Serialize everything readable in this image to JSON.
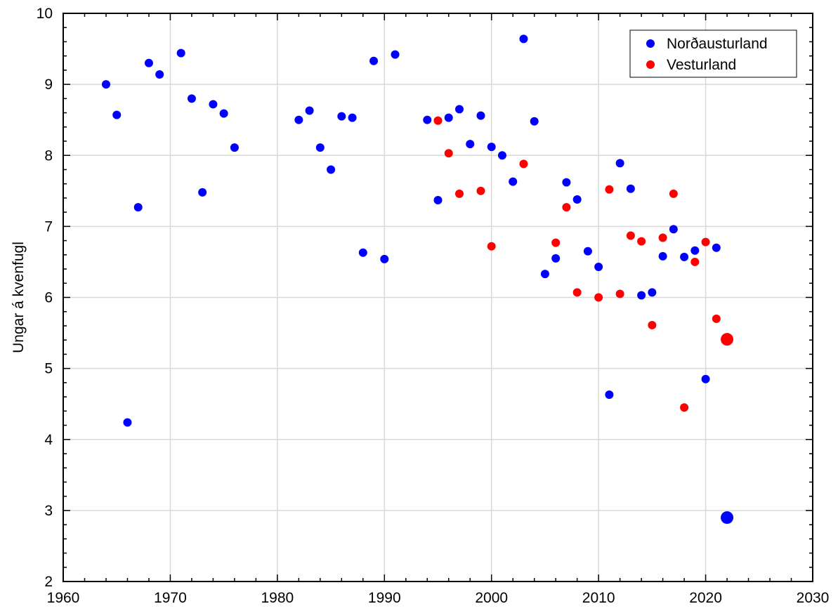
{
  "chart_data": {
    "type": "scatter",
    "title": "",
    "xlabel": "",
    "ylabel": "Ungar á kvenfugl",
    "xlim": [
      1960,
      2030
    ],
    "ylim": [
      2,
      10
    ],
    "x_ticks": [
      1960,
      1970,
      1980,
      1990,
      2000,
      2010,
      2020,
      2030
    ],
    "y_ticks": [
      2,
      3,
      4,
      5,
      6,
      7,
      8,
      9,
      10
    ],
    "grid": true,
    "legend_position": "top-right",
    "series": [
      {
        "name": "Norðausturland",
        "color": "#0000ff",
        "points": [
          [
            1964,
            9.0
          ],
          [
            1965,
            8.57
          ],
          [
            1966,
            4.24
          ],
          [
            1967,
            7.27
          ],
          [
            1968,
            9.3
          ],
          [
            1969,
            9.14
          ],
          [
            1971,
            9.44
          ],
          [
            1972,
            8.8
          ],
          [
            1973,
            7.48
          ],
          [
            1974,
            8.72
          ],
          [
            1975,
            8.59
          ],
          [
            1976,
            8.11
          ],
          [
            1982,
            8.5
          ],
          [
            1983,
            8.63
          ],
          [
            1984,
            8.11
          ],
          [
            1985,
            7.8
          ],
          [
            1986,
            8.55
          ],
          [
            1987,
            8.53
          ],
          [
            1988,
            6.63
          ],
          [
            1989,
            9.33
          ],
          [
            1990,
            6.54
          ],
          [
            1991,
            9.42
          ],
          [
            1994,
            8.5
          ],
          [
            1995,
            7.37
          ],
          [
            1996,
            8.53
          ],
          [
            1997,
            8.65
          ],
          [
            1998,
            8.16
          ],
          [
            1999,
            8.56
          ],
          [
            2000,
            8.12
          ],
          [
            2001,
            8.0
          ],
          [
            2002,
            7.63
          ],
          [
            2003,
            9.64
          ],
          [
            2004,
            8.48
          ],
          [
            2005,
            6.33
          ],
          [
            2006,
            6.55
          ],
          [
            2007,
            7.62
          ],
          [
            2008,
            7.38
          ],
          [
            2009,
            6.65
          ],
          [
            2010,
            6.43
          ],
          [
            2011,
            4.63
          ],
          [
            2012,
            7.89
          ],
          [
            2013,
            7.53
          ],
          [
            2014,
            6.03
          ],
          [
            2015,
            6.07
          ],
          [
            2016,
            6.58
          ],
          [
            2017,
            6.96
          ],
          [
            2018,
            6.57
          ],
          [
            2019,
            6.66
          ],
          [
            2020,
            4.85
          ],
          [
            2021,
            6.7
          ]
        ],
        "highlight": [
          [
            2022,
            2.9
          ]
        ]
      },
      {
        "name": "Vesturland",
        "color": "#ff0000",
        "points": [
          [
            1995,
            8.49
          ],
          [
            1996,
            8.03
          ],
          [
            1997,
            7.46
          ],
          [
            1999,
            7.5
          ],
          [
            2000,
            6.72
          ],
          [
            2003,
            7.88
          ],
          [
            2006,
            6.77
          ],
          [
            2007,
            7.27
          ],
          [
            2008,
            6.07
          ],
          [
            2010,
            6.0
          ],
          [
            2011,
            7.52
          ],
          [
            2012,
            6.05
          ],
          [
            2013,
            6.87
          ],
          [
            2014,
            6.79
          ],
          [
            2015,
            5.61
          ],
          [
            2016,
            6.84
          ],
          [
            2017,
            7.46
          ],
          [
            2018,
            4.45
          ],
          [
            2019,
            6.5
          ],
          [
            2020,
            6.78
          ],
          [
            2021,
            5.7
          ]
        ],
        "highlight": [
          [
            2022,
            5.41
          ]
        ]
      }
    ]
  }
}
